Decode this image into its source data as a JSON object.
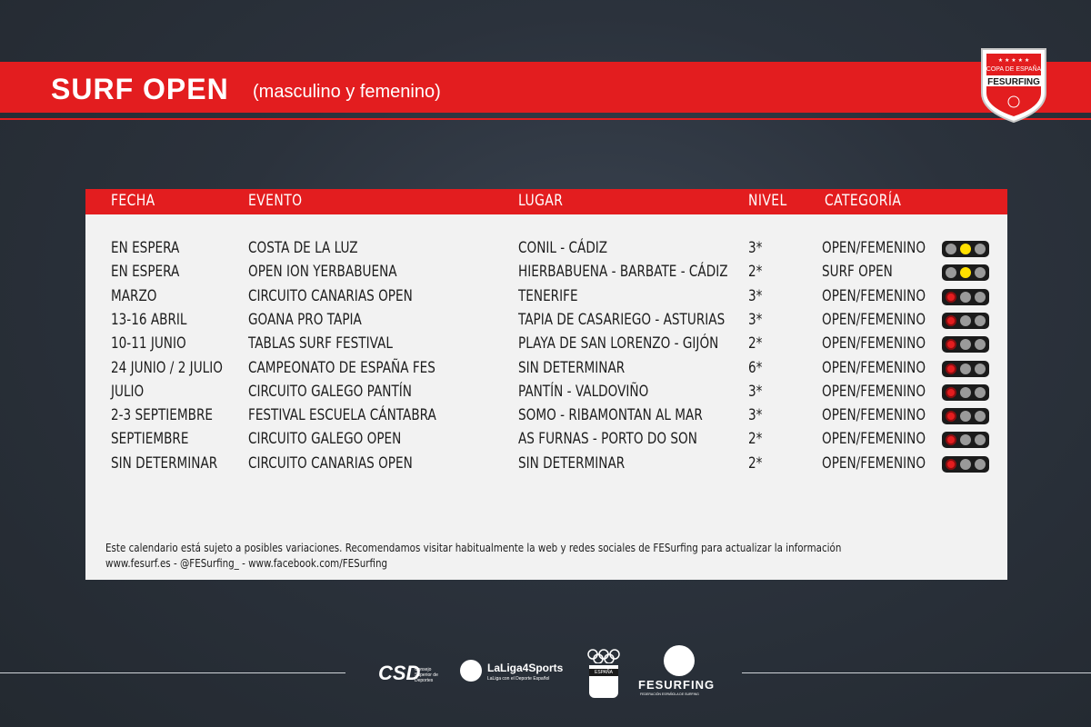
{
  "header": {
    "title": "SURF OPEN",
    "subtitle": "(masculino y femenino)",
    "badge_top": "COPA DE ESPAÑA",
    "badge_main": "FESURFING"
  },
  "table": {
    "headers": [
      "FECHA",
      "EVENTO",
      "LUGAR",
      "NIVEL",
      "CATEGORÍA"
    ],
    "rows": [
      {
        "fecha": "EN ESPERA",
        "evento": "COSTA DE LA LUZ",
        "lugar": "CONIL - CÁDIZ",
        "nivel": "3*",
        "categoria": "OPEN/FEMENINO",
        "status": "yellow"
      },
      {
        "fecha": "EN ESPERA",
        "evento": "OPEN ION YERBABUENA",
        "lugar": "HIERBABUENA - BARBATE - CÁDIZ",
        "nivel": "2*",
        "categoria": "SURF OPEN",
        "status": "yellow"
      },
      {
        "fecha": "MARZO",
        "evento": "CIRCUITO CANARIAS OPEN",
        "lugar": "TENERIFE",
        "nivel": "3*",
        "categoria": "OPEN/FEMENINO",
        "status": "red"
      },
      {
        "fecha": "13-16 ABRIL",
        "evento": "GOANA PRO TAPIA",
        "lugar": "TAPIA DE CASARIEGO - ASTURIAS",
        "nivel": "3*",
        "categoria": "OPEN/FEMENINO",
        "status": "red"
      },
      {
        "fecha": "10-11 JUNIO",
        "evento": "TABLAS SURF FESTIVAL",
        "lugar": "PLAYA DE SAN LORENZO - GIJÓN",
        "nivel": "2*",
        "categoria": "OPEN/FEMENINO",
        "status": "red"
      },
      {
        "fecha": "24 JUNIO / 2 JULIO",
        "evento": "CAMPEONATO DE ESPAÑA FES",
        "lugar": "SIN DETERMINAR",
        "nivel": "6*",
        "categoria": "OPEN/FEMENINO",
        "status": "red"
      },
      {
        "fecha": "JULIO",
        "evento": "CIRCUITO GALEGO PANTÍN",
        "lugar": "PANTÍN - VALDOVIÑO",
        "nivel": "3*",
        "categoria": "OPEN/FEMENINO",
        "status": "red"
      },
      {
        "fecha": "2-3 SEPTIEMBRE",
        "evento": "FESTIVAL ESCUELA CÁNTABRA",
        "lugar": "SOMO - RIBAMONTAN AL MAR",
        "nivel": "3*",
        "categoria": "OPEN/FEMENINO",
        "status": "red"
      },
      {
        "fecha": "SEPTIEMBRE",
        "evento": "CIRCUITO GALEGO OPEN",
        "lugar": "AS FURNAS - PORTO DO SON",
        "nivel": "2*",
        "categoria": "OPEN/FEMENINO",
        "status": "red"
      },
      {
        "fecha": "SIN DETERMINAR",
        "evento": "CIRCUITO CANARIAS OPEN",
        "lugar": "SIN DETERMINAR",
        "nivel": "2*",
        "categoria": "OPEN/FEMENINO",
        "status": "red"
      }
    ]
  },
  "notes": {
    "line1": "Este calendario está sujeto a posibles variaciones. Recomendamos visitar habitualmente la web y redes sociales de FESurfing para actualizar la información",
    "line2": "www.fesurf.es - @FESurfing_ - www.facebook.com/FESurfing"
  },
  "footer_logos": {
    "csd": "CSD",
    "csd_caption": "Consejo Superior de Deportes",
    "laliga": "LaLiga4Sports",
    "laliga_caption": "LaLiga con el Deporte Español",
    "espana": "ESPAÑA",
    "fesurfing": "FESURFING",
    "fesurfing_caption": "FEDERACIÓN ESPAÑOLA DE SURFING"
  },
  "colors": {
    "accent": "#e31d1f",
    "panel": "#f2f2f2",
    "background": "#2b323c"
  }
}
